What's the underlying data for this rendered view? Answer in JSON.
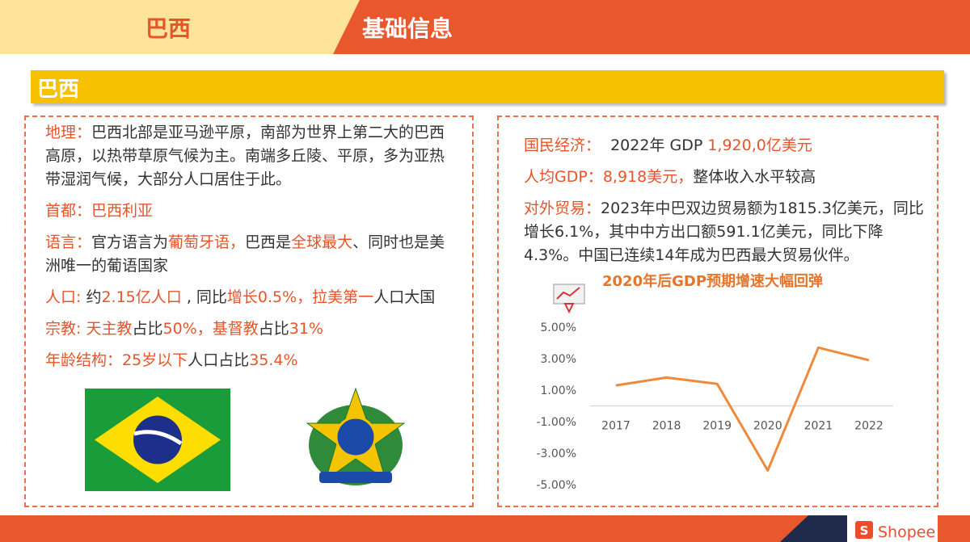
{
  "header": {
    "country": "巴西",
    "title": "基础信息"
  },
  "section_title": "巴西",
  "left": {
    "items": [
      [
        {
          "text": "地理：",
          "accent": true
        },
        {
          "text": "巴西北部是亚马逊平原，南部为世界上第二大的巴西高原，以热带草原气候为主。南端多丘陵、平原，多为亚热带湿润气候，大部分人口居住于此。"
        }
      ],
      [
        {
          "text": "首都：",
          "accent": true
        },
        {
          "text": "巴西利亚",
          "accent": true
        }
      ],
      [
        {
          "text": "语言：",
          "accent": true
        },
        {
          "text": "官方语言为"
        },
        {
          "text": "葡萄牙语，",
          "accent": true
        },
        {
          "text": "巴西是"
        },
        {
          "text": "全球最大",
          "accent": true
        },
        {
          "text": "、同时也是美洲唯一的葡语国家"
        }
      ],
      [
        {
          "text": "人口: ",
          "accent": true
        },
        {
          "text": "约"
        },
        {
          "text": "2.15亿人口",
          "accent": true
        },
        {
          "text": " , 同比"
        },
        {
          "text": "增长0.5%，拉美第一",
          "accent": true
        },
        {
          "text": "人口大国"
        }
      ],
      [
        {
          "text": "宗教: ",
          "accent": true
        },
        {
          "text": "天主教",
          "accent": true
        },
        {
          "text": "占比"
        },
        {
          "text": "50%，基督教",
          "accent": true
        },
        {
          "text": "占比"
        },
        {
          "text": "31%",
          "accent": true
        }
      ],
      [
        {
          "text": "年龄结构：",
          "accent": true
        },
        {
          "text": "25岁以下",
          "accent": true
        },
        {
          "text": "人口占比"
        },
        {
          "text": "35.4%",
          "accent": true
        }
      ]
    ]
  },
  "right": {
    "items": [
      [
        {
          "text": "国民经济：",
          "accent": true
        },
        {
          "text": "  2022年 GDP "
        },
        {
          "text": "1,920,0亿美元",
          "accent": true
        }
      ],
      [
        {
          "text": "人均GDP：",
          "accent": true
        },
        {
          "text": "8,918美元，",
          "accent": true
        },
        {
          "text": "整体收入水平较高"
        }
      ],
      [
        {
          "text": "对外贸易：",
          "accent": true
        },
        {
          "text": "2023年中巴双边贸易额为1815.3亿美元，同比增长6.1%，其中中方出口额591.1亿美元，同比下降4.3%。中国已连续14年成为巴西最大贸易伙伴。"
        }
      ]
    ]
  },
  "chart_data": {
    "type": "line",
    "title": "2020年后GDP预期增速大幅回弹",
    "categories": [
      "2017",
      "2018",
      "2019",
      "2020",
      "2021",
      "2022"
    ],
    "values": [
      1.3,
      1.8,
      1.4,
      -4.1,
      3.7,
      2.9
    ],
    "color": "#ef8a3c",
    "ylim": [
      -5,
      5
    ],
    "yticks": [
      {
        "value": 5,
        "label": "5.00%"
      },
      {
        "value": 3,
        "label": "3.00%"
      },
      {
        "value": 1,
        "label": "1.00%"
      },
      {
        "value": -1,
        "label": "-1.00%"
      },
      {
        "value": -3,
        "label": "-3.00%"
      },
      {
        "value": -5,
        "label": "-5.00%"
      }
    ]
  },
  "footer": {
    "brand": "Shopee"
  }
}
